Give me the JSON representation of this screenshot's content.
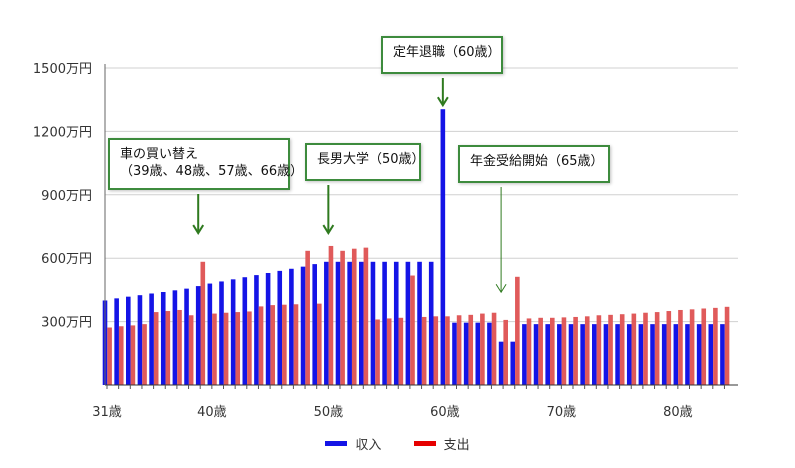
{
  "chart_data": {
    "type": "bar",
    "title": "",
    "xlabel": "",
    "ylabel": "",
    "ylim": [
      0,
      1500
    ],
    "y_ticks": [
      300,
      600,
      900,
      1200,
      1500
    ],
    "y_tick_suffix": "万円",
    "x_ticks": [
      "31歳",
      "40歳",
      "50歳",
      "60歳",
      "70歳",
      "80歳"
    ],
    "x_tick_ages": [
      31,
      40,
      50,
      60,
      70,
      80
    ],
    "grid": true,
    "legend_position": "bottom",
    "ages": [
      31,
      32,
      33,
      34,
      35,
      36,
      37,
      38,
      39,
      40,
      41,
      42,
      43,
      44,
      45,
      46,
      47,
      48,
      49,
      50,
      51,
      52,
      53,
      54,
      55,
      56,
      57,
      58,
      59,
      60,
      61,
      62,
      63,
      64,
      65,
      66,
      67,
      68,
      69,
      70,
      71,
      72,
      73,
      74,
      75,
      76,
      77,
      78,
      79,
      80,
      81,
      82,
      83,
      84
    ],
    "series": [
      {
        "name": "収入",
        "color": "#1414e6",
        "values": [
          400,
          410,
          418,
          425,
          433,
          440,
          448,
          456,
          468,
          480,
          490,
          500,
          510,
          520,
          530,
          540,
          550,
          560,
          572,
          583,
          583,
          583,
          583,
          583,
          583,
          583,
          583,
          583,
          583,
          1305,
          295,
          295,
          295,
          295,
          205,
          205,
          288,
          288,
          288,
          288,
          288,
          288,
          288,
          288,
          288,
          288,
          288,
          288,
          288,
          288,
          288,
          288,
          288,
          288
        ]
      },
      {
        "name": "支出",
        "color": "#e05a5a",
        "values": [
          272,
          278,
          282,
          288,
          345,
          350,
          355,
          330,
          583,
          338,
          342,
          345,
          348,
          372,
          378,
          380,
          382,
          635,
          385,
          658,
          635,
          645,
          650,
          310,
          315,
          318,
          518,
          322,
          325,
          325,
          330,
          332,
          338,
          342,
          308,
          512,
          315,
          318,
          318,
          320,
          322,
          325,
          330,
          332,
          335,
          338,
          342,
          345,
          350,
          355,
          358,
          362,
          365,
          370
        ]
      }
    ],
    "annotations": [
      {
        "lines": [
          "車の買い替え",
          "（39歳、48歳、57歳、66歳）"
        ],
        "age": 39,
        "arrow_to": 700
      },
      {
        "lines": [
          "長男大学（50歳）"
        ],
        "age": 50,
        "arrow_to": 700
      },
      {
        "lines": [
          "定年退職（60歳）"
        ],
        "age": 60,
        "arrow_to": 1305
      },
      {
        "lines": [
          "年金受給開始（65歳）"
        ],
        "age": 65,
        "arrow_to": 420
      }
    ]
  }
}
